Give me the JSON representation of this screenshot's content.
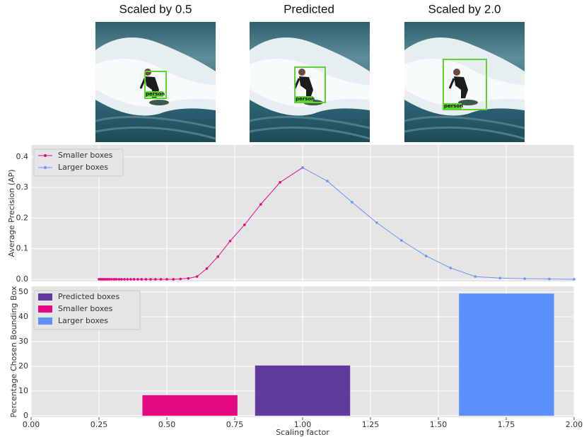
{
  "images": [
    {
      "title": "Scaled by 0.5",
      "box_label": "person"
    },
    {
      "title": "Predicted",
      "box_label": "person"
    },
    {
      "title": "Scaled by 2.0",
      "box_label": "person"
    }
  ],
  "chart_data": [
    {
      "type": "line",
      "ylabel": "Average Precision (AP)",
      "xlim": [
        0,
        2
      ],
      "ylim": [
        -0.007,
        0.439
      ],
      "yticks": [
        {
          "value": 0,
          "label": "0.0"
        },
        0.1,
        0.2,
        0.3,
        0.4
      ],
      "grid": true,
      "sharex": true,
      "legend": "upper-left",
      "series": [
        {
          "name": "Smaller boxes",
          "color": "#e6087f",
          "x": [
            0.25,
            0.256,
            0.262,
            0.268,
            0.275,
            0.282,
            0.289,
            0.297,
            0.306,
            0.314,
            0.324,
            0.333,
            0.344,
            0.355,
            0.367,
            0.379,
            0.393,
            0.407,
            0.423,
            0.44,
            0.458,
            0.478,
            0.5,
            0.524,
            0.55,
            0.579,
            0.611,
            0.647,
            0.688,
            0.733,
            0.786,
            0.846,
            0.917,
            1.0
          ],
          "values": [
            0,
            0,
            0,
            0,
            0,
            0,
            0,
            0,
            0,
            0,
            0,
            0,
            0,
            0,
            0,
            0,
            0,
            0,
            0,
            0,
            0,
            0,
            0,
            0,
            0.001,
            0.003,
            0.009,
            0.035,
            0.074,
            0.125,
            0.178,
            0.245,
            0.317,
            0.365
          ]
        },
        {
          "name": "Larger boxes",
          "color": "#6b95f5",
          "x": [
            1.0,
            1.091,
            1.182,
            1.273,
            1.364,
            1.455,
            1.545,
            1.636,
            1.727,
            1.818,
            1.909,
            2.0
          ],
          "values": [
            0.365,
            0.321,
            0.252,
            0.185,
            0.127,
            0.076,
            0.037,
            0.009,
            0.004,
            0.002,
            0.001,
            0
          ]
        }
      ]
    },
    {
      "type": "bar",
      "xlabel": "Scaling factor",
      "ylabel": "Percentage Chosen Bounding Box",
      "xlim": [
        0,
        2
      ],
      "ylim": [
        -0.6,
        52.3
      ],
      "xticks": [
        {
          "value": 0,
          "label": "0.00"
        },
        {
          "value": 0.25,
          "label": "0.25"
        },
        {
          "value": 0.5,
          "label": "0.50"
        },
        {
          "value": 0.75,
          "label": "0.75"
        },
        {
          "value": 1,
          "label": "1.00"
        },
        {
          "value": 1.25,
          "label": "1.25"
        },
        {
          "value": 1.5,
          "label": "1.50"
        },
        {
          "value": 1.75,
          "label": "1.75"
        },
        {
          "value": 2,
          "label": "2.00"
        }
      ],
      "yticks": [
        0,
        10,
        20,
        30,
        40,
        50
      ],
      "grid": true,
      "legend": "upper-left",
      "bar_width": 0.35,
      "series": [
        {
          "name": "Predicted boxes",
          "color": "#613a9d",
          "x": [
            1.0
          ],
          "values": [
            20.3
          ]
        },
        {
          "name": "Smaller boxes",
          "color": "#e6087f",
          "x": [
            0.585
          ],
          "values": [
            8.3
          ]
        },
        {
          "name": "Larger boxes",
          "color": "#5b8ff9",
          "x": [
            1.751
          ],
          "values": [
            49.4
          ]
        }
      ]
    }
  ]
}
